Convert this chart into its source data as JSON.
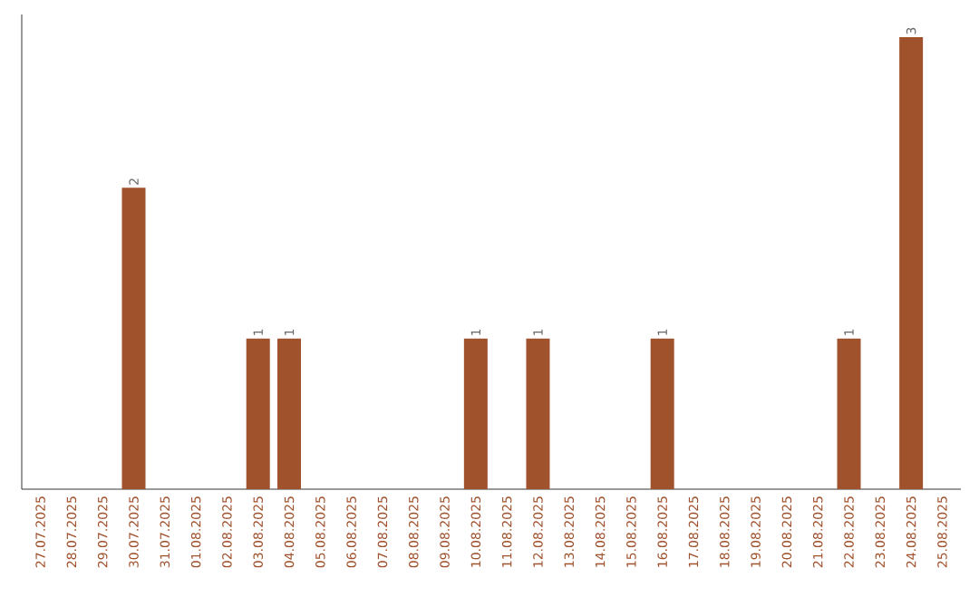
{
  "chart_data": {
    "type": "bar",
    "categories": [
      "27.07.2025",
      "28.07.2025",
      "29.07.2025",
      "30.07.2025",
      "31.07.2025",
      "01.08.2025",
      "02.08.2025",
      "03.08.2025",
      "04.08.2025",
      "05.08.2025",
      "06.08.2025",
      "07.08.2025",
      "08.08.2025",
      "09.08.2025",
      "10.08.2025",
      "11.08.2025",
      "12.08.2025",
      "13.08.2025",
      "14.08.2025",
      "15.08.2025",
      "16.08.2025",
      "17.08.2025",
      "18.08.2025",
      "19.08.2025",
      "20.08.2025",
      "21.08.2025",
      "22.08.2025",
      "23.08.2025",
      "24.08.2025",
      "25.08.2025"
    ],
    "values": [
      0,
      0,
      0,
      2,
      0,
      0,
      0,
      1,
      1,
      0,
      0,
      0,
      0,
      0,
      1,
      0,
      1,
      0,
      0,
      0,
      1,
      0,
      0,
      0,
      0,
      0,
      1,
      0,
      3,
      0
    ],
    "value_labels": [
      null,
      null,
      null,
      "2",
      null,
      null,
      null,
      "1",
      "1",
      null,
      null,
      null,
      null,
      null,
      "1",
      null,
      "1",
      null,
      null,
      null,
      "1",
      null,
      null,
      null,
      null,
      null,
      "1",
      null,
      "3",
      null
    ],
    "color": "#a0522d",
    "grid": false
  }
}
